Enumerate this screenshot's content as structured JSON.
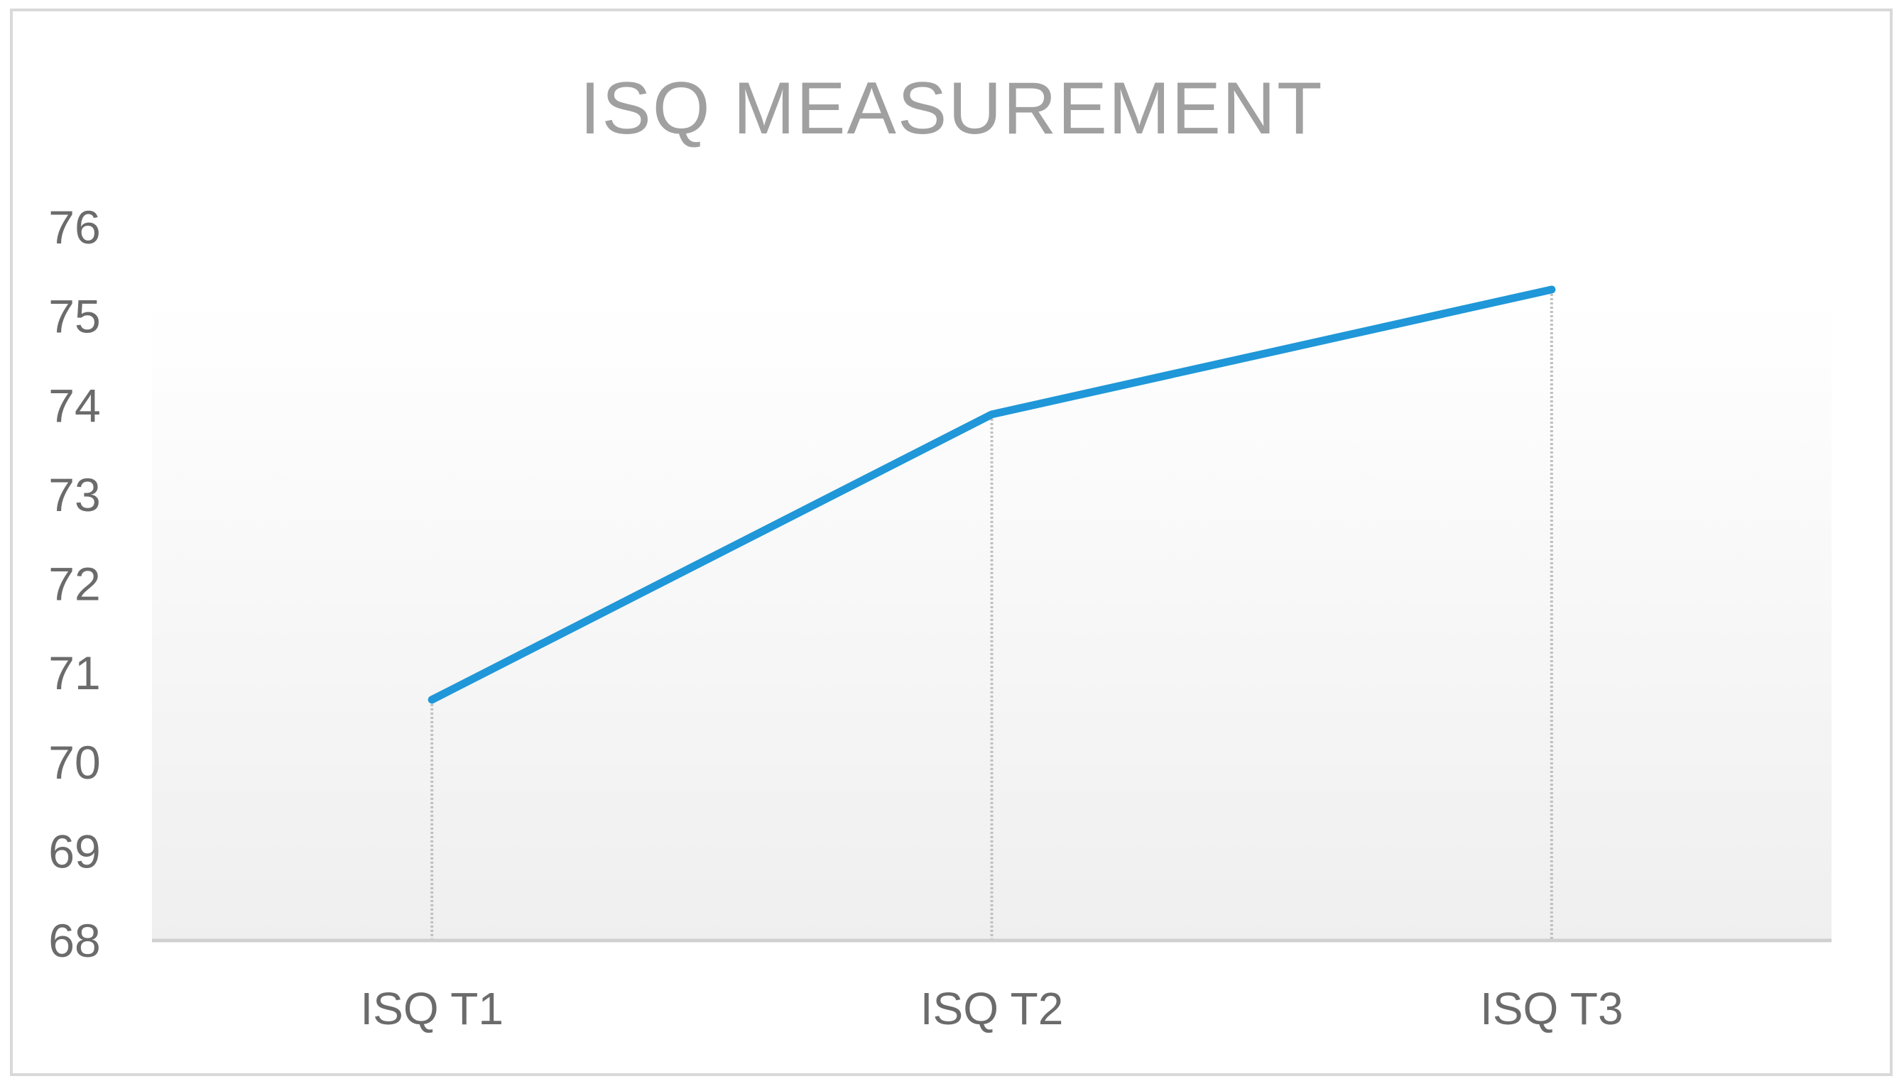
{
  "chart_data": {
    "type": "line",
    "title": "ISQ MEASUREMENT",
    "xlabel": "",
    "ylabel": "",
    "categories": [
      "ISQ T1",
      "ISQ T2",
      "ISQ T3"
    ],
    "series": [
      {
        "values": [
          70.7,
          73.9,
          75.3
        ],
        "color": "#1f97d8"
      }
    ],
    "ylim": [
      68,
      76
    ],
    "yticks": [
      68,
      69,
      70,
      71,
      72,
      73,
      74,
      75,
      76
    ],
    "grid": false,
    "drop_lines": true,
    "legend": "none",
    "colors": {
      "line": "#1f97d8",
      "title": "#a0a0a0",
      "tick_labels": "#6b6b6b",
      "axis": "#d0d0d0",
      "frame": "#d9d9d9",
      "drop_lines": "#bfbfbf"
    }
  }
}
